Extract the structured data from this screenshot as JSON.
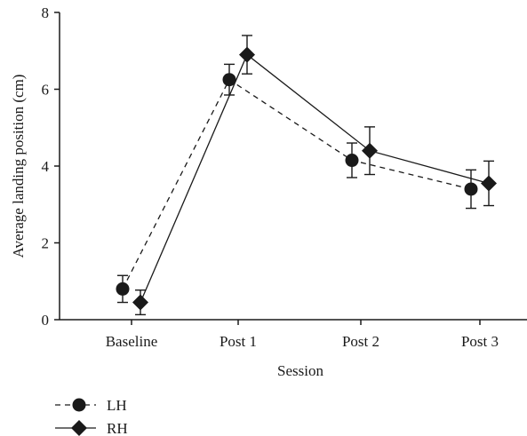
{
  "chart_data": {
    "type": "line",
    "xlabel": "Session",
    "ylabel": "Average landing position (cm)",
    "categories": [
      "Baseline",
      "Post 1",
      "Post 2",
      "Post 3"
    ],
    "ylim": [
      0,
      8
    ],
    "yticks": [
      0,
      2,
      4,
      6,
      8
    ],
    "grid": false,
    "legend_position": "bottom-left",
    "series": [
      {
        "name": "LH",
        "marker": "circle",
        "line_style": "dashed",
        "values": [
          0.8,
          6.25,
          4.15,
          3.4
        ],
        "error": [
          0.35,
          0.4,
          0.45,
          0.5
        ],
        "color": "#1a1a1a"
      },
      {
        "name": "RH",
        "marker": "diamond",
        "line_style": "solid",
        "values": [
          0.45,
          6.9,
          4.4,
          3.55
        ],
        "error": [
          0.32,
          0.5,
          0.62,
          0.58
        ],
        "color": "#1a1a1a"
      }
    ]
  }
}
